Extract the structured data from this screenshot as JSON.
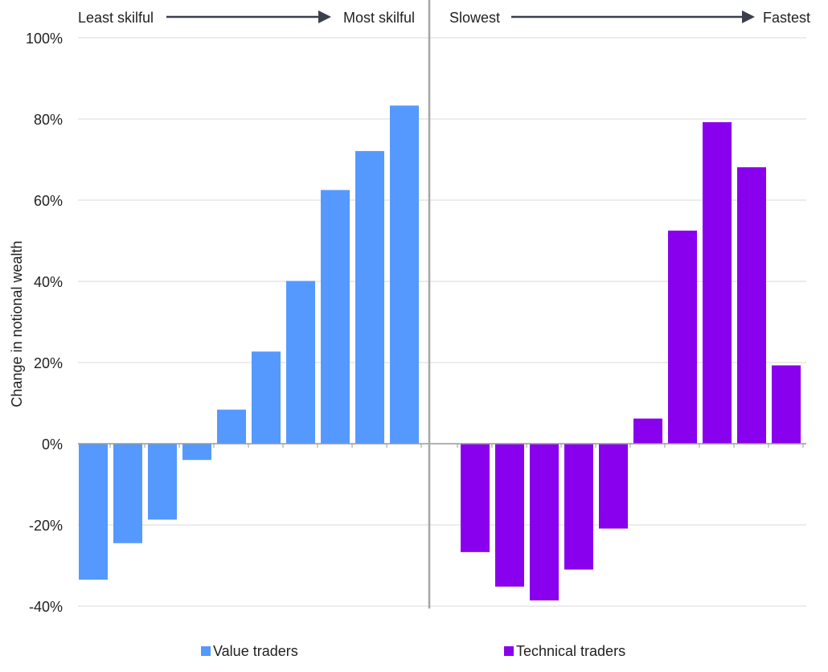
{
  "chart_data": {
    "type": "bar",
    "ylabel": "Change in notional wealth",
    "ylim": [
      -40,
      100
    ],
    "yticks": [
      100,
      80,
      60,
      40,
      20,
      0,
      -20,
      -40
    ],
    "ytick_suffix": "%",
    "grid": true,
    "legend_placement": "bottom",
    "panels": [
      {
        "arrow_left_label": "Least skilful",
        "arrow_right_label": "Most skilful",
        "series": [
          {
            "name": "Value traders",
            "color": "#5599ff",
            "values": [
              -33.5,
              -24.5,
              -18.7,
              -4.0,
              8.4,
              22.7,
              40.1,
              62.5,
              72.1,
              83.3
            ]
          }
        ]
      },
      {
        "arrow_left_label": "Slowest",
        "arrow_right_label": "Fastest",
        "series": [
          {
            "name": "Technical traders",
            "color": "#8800ee",
            "values": [
              0,
              -26.7,
              -35.2,
              -38.6,
              -31.0,
              -20.9,
              6.2,
              52.5,
              79.2,
              68.1,
              19.3
            ]
          }
        ]
      }
    ]
  }
}
